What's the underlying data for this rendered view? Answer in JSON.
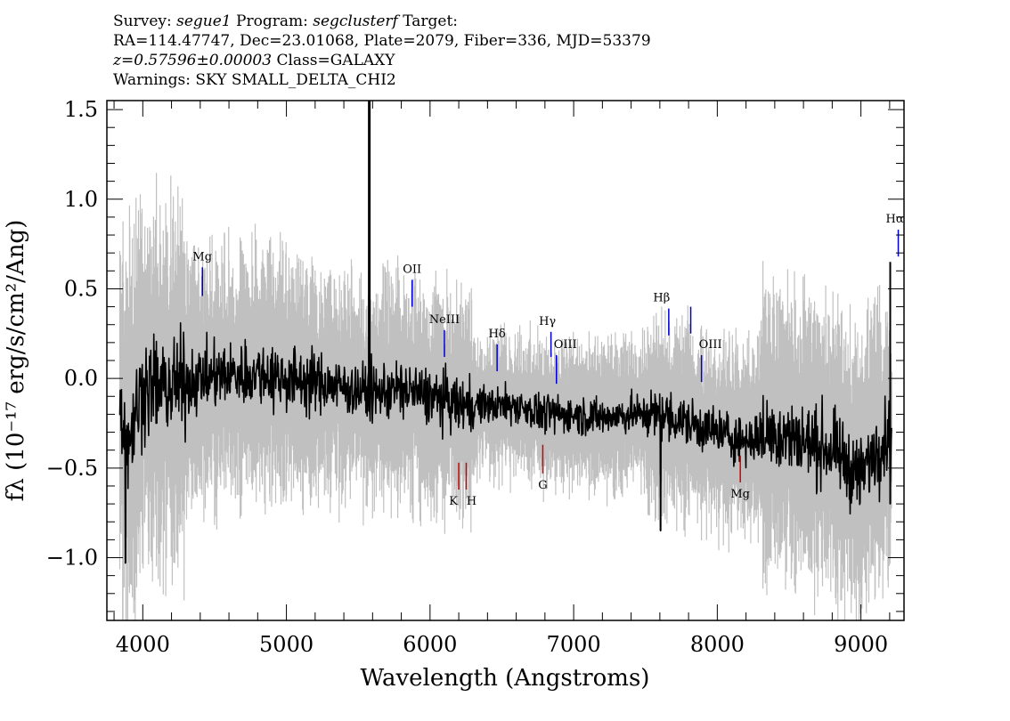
{
  "header": {
    "survey_label": "Survey:",
    "survey_value": "segue1",
    "program_label": "Program:",
    "program_value": "segclusterf",
    "target_label": "Target:",
    "line2": "RA=114.47747, Dec=23.01068, Plate=2079, Fiber=336, MJD=53379",
    "redshift": "z=0.57596±0.00003",
    "class_text": "Class=GALAXY",
    "warnings": "Warnings: SKY SMALL_DELTA_CHI2"
  },
  "chart_data": {
    "type": "line",
    "xlabel": "Wavelength (Angstroms)",
    "ylabel": "fλ (10⁻¹⁷ erg/s/cm²/Ang)",
    "xlim": [
      3750,
      9300
    ],
    "ylim": [
      -1.35,
      1.55
    ],
    "x_ticks": [
      4000,
      5000,
      6000,
      7000,
      8000,
      9000
    ],
    "x_tick_labels": [
      "4000",
      "5000",
      "6000",
      "7000",
      "8000",
      "9000"
    ],
    "y_ticks": [
      -1.0,
      -0.5,
      0.0,
      0.5,
      1.0,
      1.5
    ],
    "y_tick_labels": [
      "−1.0",
      "−0.5",
      "0.0",
      "0.5",
      "1.0",
      "1.5"
    ],
    "grid": false,
    "series": [
      {
        "role": "error band",
        "color": "#c0c0c0"
      },
      {
        "role": "flux",
        "color": "#000000"
      }
    ],
    "flux_profile": {
      "x": [
        3840,
        3900,
        4000,
        4200,
        4400,
        4600,
        4800,
        5000,
        5200,
        5400,
        5600,
        5800,
        6000,
        6200,
        6400,
        6600,
        6800,
        7000,
        7200,
        7400,
        7600,
        7800,
        8000,
        8200,
        8400,
        8600,
        8800,
        9000,
        9100,
        9200
      ],
      "y": [
        -0.15,
        -0.35,
        -0.05,
        -0.05,
        0.0,
        0.02,
        0.03,
        0.0,
        -0.02,
        -0.05,
        -0.08,
        -0.06,
        -0.1,
        -0.15,
        -0.15,
        -0.15,
        -0.2,
        -0.2,
        -0.22,
        -0.2,
        -0.2,
        -0.25,
        -0.3,
        -0.35,
        -0.3,
        -0.35,
        -0.4,
        -0.55,
        -0.4,
        -0.3
      ]
    },
    "spikes": [
      {
        "x": 3880,
        "y": -1.03
      },
      {
        "x": 5577,
        "y": 1.55
      },
      {
        "x": 7605,
        "y": -0.85
      },
      {
        "x": 9204,
        "y": 0.65
      },
      {
        "x": 9204,
        "y": -0.7
      }
    ],
    "emission_lines": [
      {
        "name": "Mg",
        "x": 4415,
        "y_top": 0.62,
        "y_bottom": 0.46,
        "color": "#0000cc"
      },
      {
        "name": "OII",
        "x": 5875,
        "y_top": 0.55,
        "y_bottom": 0.4,
        "color": "#0000cc"
      },
      {
        "name": "NeIII",
        "x": 6100,
        "y_top": 0.27,
        "y_bottom": 0.12,
        "color": "#0000cc"
      },
      {
        "name": "Hδ",
        "x": 6467,
        "y_top": 0.19,
        "y_bottom": 0.04,
        "color": "#0000cc"
      },
      {
        "name": "Hγ",
        "x": 6842,
        "y_top": 0.26,
        "y_bottom": 0.12,
        "color": "#0000cc"
      },
      {
        "name": "OIII",
        "x": 6880,
        "y_top": 0.13,
        "y_bottom": -0.03,
        "color": "#0000cc"
      },
      {
        "name": "Hβ",
        "x": 7662,
        "y_top": 0.39,
        "y_bottom": 0.24,
        "color": "#0000cc"
      },
      {
        "name": "",
        "x": 7815,
        "y_top": 0.4,
        "y_bottom": 0.25,
        "color": "#0000cc"
      },
      {
        "name": "OIII",
        "x": 7890,
        "y_top": 0.13,
        "y_bottom": -0.02,
        "color": "#0000cc"
      },
      {
        "name": "Hα",
        "x": 9260,
        "y_top": 0.83,
        "y_bottom": 0.68,
        "color": "#0000cc"
      }
    ],
    "absorption_lines": [
      {
        "name": "K",
        "x": 6200,
        "y_top": -0.47,
        "y_bottom": -0.62,
        "color": "#cc0000"
      },
      {
        "name": "H",
        "x": 6252,
        "y_top": -0.47,
        "y_bottom": -0.62,
        "color": "#cc0000"
      },
      {
        "name": "G",
        "x": 6785,
        "y_top": -0.37,
        "y_bottom": -0.53,
        "color": "#cc0000"
      },
      {
        "name": "Mg",
        "x": 8160,
        "y_top": -0.43,
        "y_bottom": -0.58,
        "color": "#cc0000"
      }
    ],
    "line_label_text": {
      "Mg": "Mg",
      "OII": "OII",
      "NeIII": "NeIII",
      "Hd": "Hδ",
      "Hg": "Hγ",
      "OIII": "OIII",
      "Hb": "Hβ",
      "Ha": "Hα",
      "K": "K",
      "H": "H",
      "G": "G"
    }
  }
}
